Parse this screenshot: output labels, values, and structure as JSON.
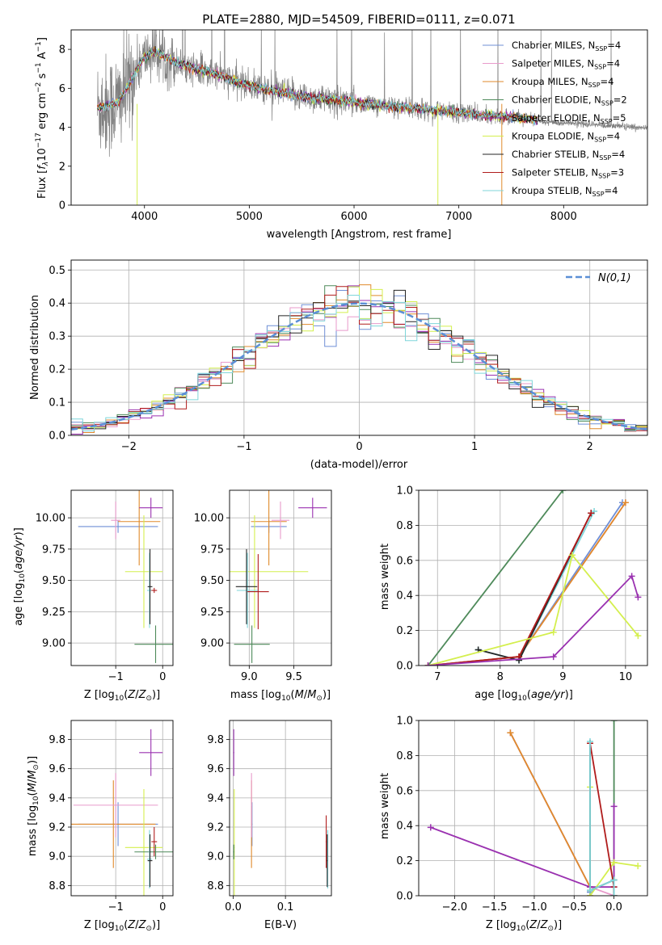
{
  "colors": {
    "Chabrier MILES": "#6f8fd6",
    "Salpeter MILES": "#e89acb",
    "Kroupa MILES": "#e08a2b",
    "Chabrier ELODIE": "#4e8a5a",
    "Salpeter ELODIE": "#9a31b0",
    "Kroupa ELODIE": "#d4ef4e",
    "Chabrier STELIB": "#262626",
    "Salpeter STELIB": "#b01c1c",
    "Kroupa STELIB": "#7fd6da",
    "data": "#808080",
    "normal": "#5b8fd6"
  },
  "chart_data": [
    {
      "id": "spectrum",
      "type": "line",
      "title": "PLATE=2880, MJD=54509, FIBERID=0111, z=0.071",
      "xlabel": "wavelength [Angstrom, rest frame]",
      "ylabel_html": "Flux [f_λ10^-17 erg cm^-2 s^-1 A^-1]",
      "xlim": [
        3300,
        8800
      ],
      "ylim": [
        0,
        9
      ],
      "xticks": [
        "4000",
        "5000",
        "6000",
        "7000",
        "8000"
      ],
      "yticks": [
        "0",
        "2",
        "4",
        "6",
        "8"
      ],
      "legend_position": "top-right",
      "legend": [
        {
          "name": "Chabrier MILES",
          "nssp": "4"
        },
        {
          "name": "Salpeter MILES",
          "nssp": "4"
        },
        {
          "name": "Kroupa MILES",
          "nssp": "4"
        },
        {
          "name": "Chabrier ELODIE",
          "nssp": "2"
        },
        {
          "name": "Salpeter ELODIE",
          "nssp": "5"
        },
        {
          "name": "Kroupa ELODIE",
          "nssp": "4"
        },
        {
          "name": "Chabrier STELIB",
          "nssp": "4"
        },
        {
          "name": "Salpeter STELIB",
          "nssp": "3"
        },
        {
          "name": "Kroupa STELIB",
          "nssp": "4"
        }
      ],
      "model_trend": [
        [
          3550,
          5.0
        ],
        [
          3650,
          5.1
        ],
        [
          3750,
          5.3
        ],
        [
          3850,
          6.2
        ],
        [
          3950,
          7.2
        ],
        [
          4000,
          7.6
        ],
        [
          4100,
          7.9
        ],
        [
          4200,
          7.6
        ],
        [
          4300,
          7.3
        ],
        [
          4500,
          7.0
        ],
        [
          4700,
          6.7
        ],
        [
          4900,
          6.3
        ],
        [
          5100,
          6.0
        ],
        [
          5300,
          5.8
        ],
        [
          5500,
          5.6
        ],
        [
          5700,
          5.45
        ],
        [
          5900,
          5.35
        ],
        [
          6100,
          5.2
        ],
        [
          6300,
          5.1
        ],
        [
          6500,
          5.0
        ],
        [
          6700,
          4.9
        ],
        [
          6900,
          4.8
        ],
        [
          7100,
          4.7
        ],
        [
          7300,
          4.6
        ],
        [
          7500,
          4.5
        ],
        [
          7700,
          4.4
        ]
      ]
    },
    {
      "id": "residuals",
      "type": "line",
      "xlabel": "(data-model)/error",
      "ylabel": "Normed distribution",
      "xlim": [
        -2.5,
        2.5
      ],
      "ylim": [
        0,
        0.53
      ],
      "xticks": [
        "−2",
        "−1",
        "0",
        "1",
        "2"
      ],
      "yticks": [
        "0.0",
        "0.1",
        "0.2",
        "0.3",
        "0.4",
        "0.5"
      ],
      "legend_position": "top-right",
      "normal_label": "N(0,1)",
      "hist_bins": [
        -2.5,
        2.5,
        50
      ]
    },
    {
      "id": "age-vs-Z",
      "type": "scatter",
      "xlabel": "Z [log10(Z/Z⊙)]",
      "ylabel": "age  [log10(age/yr)]",
      "xlim": [
        -1.95,
        0.22
      ],
      "ylim": [
        8.82,
        10.22
      ],
      "xticks": [
        "−1",
        "0"
      ],
      "yticks": [
        "9.00",
        "9.25",
        "9.50",
        "9.75",
        "10.00"
      ],
      "points": [
        {
          "model": "Chabrier MILES",
          "x": -0.95,
          "xerr": 0.85,
          "y": 9.93,
          "yerr": 0.05
        },
        {
          "model": "Kroupa MILES",
          "x": -0.5,
          "xerr": 0.45,
          "y": 9.97,
          "yerr": 0.35
        },
        {
          "model": "Salpeter MILES",
          "x": -1.0,
          "xerr": 0.1,
          "y": 9.98,
          "yerr": 0.15
        },
        {
          "model": "Salpeter ELODIE",
          "x": -0.25,
          "xerr": 0.25,
          "y": 10.08,
          "yerr": 0.08
        },
        {
          "model": "Kroupa ELODIE",
          "x": -0.4,
          "xerr": 0.4,
          "y": 9.57,
          "yerr": 0.45
        },
        {
          "model": "Chabrier ELODIE",
          "x": -0.15,
          "xerr": 0.45,
          "y": 8.99,
          "yerr": 0.15
        },
        {
          "model": "Kroupa STELIB",
          "x": -0.28,
          "xerr": 0.05,
          "y": 9.42,
          "yerr": 0.3
        },
        {
          "model": "Chabrier STELIB",
          "x": -0.27,
          "xerr": 0.05,
          "y": 9.45,
          "yerr": 0.3
        },
        {
          "model": "Salpeter STELIB",
          "x": -0.18,
          "xerr": 0.06,
          "y": 9.42,
          "yerr": 0.02
        }
      ]
    },
    {
      "id": "age-vs-mass",
      "type": "scatter",
      "xlabel": "mass [log10(M/M⊙)]",
      "ylabel": "",
      "xlim": [
        8.78,
        9.92
      ],
      "ylim": [
        8.82,
        10.22
      ],
      "xticks": [
        "9.0",
        "9.5"
      ],
      "yticks": [
        "9.00",
        "9.25",
        "9.50",
        "9.75",
        "10.00"
      ],
      "points": [
        {
          "model": "Chabrier MILES",
          "x": 9.22,
          "xerr": 0.2,
          "y": 9.93,
          "yerr": 0.05
        },
        {
          "model": "Kroupa MILES",
          "x": 9.22,
          "xerr": 0.2,
          "y": 9.97,
          "yerr": 0.35
        },
        {
          "model": "Salpeter MILES",
          "x": 9.35,
          "xerr": 0.1,
          "y": 9.98,
          "yerr": 0.15
        },
        {
          "model": "Salpeter ELODIE",
          "x": 9.71,
          "xerr": 0.16,
          "y": 10.08,
          "yerr": 0.08
        },
        {
          "model": "Kroupa ELODIE",
          "x": 9.06,
          "xerr": 0.6,
          "y": 9.57,
          "yerr": 0.45
        },
        {
          "model": "Chabrier ELODIE",
          "x": 9.03,
          "xerr": 0.2,
          "y": 8.99,
          "yerr": 0.15
        },
        {
          "model": "Kroupa STELIB",
          "x": 8.98,
          "xerr": 0.12,
          "y": 9.42,
          "yerr": 0.3
        },
        {
          "model": "Chabrier STELIB",
          "x": 8.97,
          "xerr": 0.12,
          "y": 9.45,
          "yerr": 0.3
        },
        {
          "model": "Salpeter STELIB",
          "x": 9.1,
          "xerr": 0.12,
          "y": 9.41,
          "yerr": 0.3
        }
      ]
    },
    {
      "id": "weight-vs-age",
      "type": "line",
      "xlabel": "age  [log10(age/yr)]",
      "ylabel": "mass weight",
      "xlim": [
        6.7,
        10.35
      ],
      "ylim": [
        0,
        1
      ],
      "xticks": [
        "7",
        "8",
        "9",
        "10"
      ],
      "yticks": [
        "0.0",
        "0.2",
        "0.4",
        "0.6",
        "0.8",
        "1.0"
      ],
      "series": [
        {
          "model": "Chabrier ELODIE",
          "x": [
            6.85,
            9.0
          ],
          "y": [
            0.0,
            1.0
          ]
        },
        {
          "model": "Chabrier MILES",
          "x": [
            6.85,
            8.3,
            9.95
          ],
          "y": [
            0.0,
            0.05,
            0.93
          ]
        },
        {
          "model": "Salpeter MILES",
          "x": [
            6.85,
            8.3,
            10.0
          ],
          "y": [
            0.0,
            0.05,
            0.93
          ]
        },
        {
          "model": "Kroupa MILES",
          "x": [
            6.85,
            8.3,
            10.0
          ],
          "y": [
            0.0,
            0.05,
            0.93
          ]
        },
        {
          "model": "Kroupa STELIB",
          "x": [
            7.65,
            8.3,
            9.5
          ],
          "y": [
            0.09,
            0.03,
            0.88
          ]
        },
        {
          "model": "Chabrier STELIB",
          "x": [
            7.65,
            8.3,
            9.45
          ],
          "y": [
            0.09,
            0.03,
            0.87
          ]
        },
        {
          "model": "Salpeter STELIB",
          "x": [
            6.85,
            8.3,
            9.45
          ],
          "y": [
            0.0,
            0.05,
            0.87
          ]
        },
        {
          "model": "Kroupa ELODIE",
          "x": [
            6.85,
            8.85,
            9.15,
            10.2
          ],
          "y": [
            0.0,
            0.19,
            0.63,
            0.17
          ]
        },
        {
          "model": "Salpeter ELODIE",
          "x": [
            6.85,
            8.85,
            10.1,
            10.2
          ],
          "y": [
            0.0,
            0.05,
            0.51,
            0.39
          ]
        }
      ]
    },
    {
      "id": "mass-vs-Z",
      "type": "scatter",
      "xlabel": "Z [log10(Z/Z⊙)]",
      "ylabel": "mass [log10(M/M⊙)]",
      "xlim": [
        -1.95,
        0.22
      ],
      "ylim": [
        8.73,
        9.93
      ],
      "xticks": [
        "−1",
        "0"
      ],
      "yticks": [
        "8.8",
        "9.0",
        "9.2",
        "9.4",
        "9.6",
        "9.8"
      ],
      "points": [
        {
          "model": "Chabrier MILES",
          "x": -0.95,
          "xerr": 0.85,
          "y": 9.22,
          "yerr": 0.15
        },
        {
          "model": "Kroupa MILES",
          "x": -1.05,
          "xerr": 0.9,
          "y": 9.22,
          "yerr": 0.3
        },
        {
          "model": "Salpeter MILES",
          "x": -1.0,
          "xerr": 0.9,
          "y": 9.35,
          "yerr": 0.22
        },
        {
          "model": "Salpeter ELODIE",
          "x": -0.25,
          "xerr": 0.25,
          "y": 9.71,
          "yerr": 0.16
        },
        {
          "model": "Kroupa ELODIE",
          "x": -0.4,
          "xerr": 0.4,
          "y": 9.06,
          "yerr": 0.4
        },
        {
          "model": "Chabrier ELODIE",
          "x": -0.15,
          "xerr": 0.45,
          "y": 9.03,
          "yerr": 0.05
        },
        {
          "model": "Kroupa STELIB",
          "x": -0.28,
          "xerr": 0.05,
          "y": 8.98,
          "yerr": 0.2
        },
        {
          "model": "Chabrier STELIB",
          "x": -0.27,
          "xerr": 0.05,
          "y": 8.97,
          "yerr": 0.18
        },
        {
          "model": "Salpeter STELIB",
          "x": -0.18,
          "xerr": 0.06,
          "y": 9.1,
          "yerr": 0.1
        }
      ]
    },
    {
      "id": "mass-vs-EBV",
      "type": "scatter",
      "xlabel": "E(B-V)",
      "ylabel": "",
      "xlim": [
        -0.007,
        0.188
      ],
      "ylim": [
        8.73,
        9.93
      ],
      "xticks": [
        "0.0",
        "0.1"
      ],
      "yticks": [
        "8.8",
        "9.0",
        "9.2",
        "9.4",
        "9.6",
        "9.8"
      ],
      "points": [
        {
          "model": "Salpeter ELODIE",
          "x": 0.001,
          "xerr": 0.001,
          "y": 9.71,
          "yerr": 0.16
        },
        {
          "model": "Kroupa ELODIE",
          "x": 0.002,
          "xerr": 0.001,
          "y": 9.06,
          "yerr": 0.4
        },
        {
          "model": "Chabrier ELODIE",
          "x": 0.001,
          "xerr": 0.001,
          "y": 9.03,
          "yerr": 0.05
        },
        {
          "model": "Chabrier MILES",
          "x": 0.036,
          "xerr": 0.001,
          "y": 9.22,
          "yerr": 0.15
        },
        {
          "model": "Kroupa MILES",
          "x": 0.035,
          "xerr": 0.001,
          "y": 9.22,
          "yerr": 0.3
        },
        {
          "model": "Salpeter MILES",
          "x": 0.035,
          "xerr": 0.001,
          "y": 9.35,
          "yerr": 0.22
        },
        {
          "model": "Kroupa STELIB",
          "x": 0.181,
          "xerr": 0.001,
          "y": 8.98,
          "yerr": 0.2
        },
        {
          "model": "Chabrier STELIB",
          "x": 0.18,
          "xerr": 0.001,
          "y": 8.97,
          "yerr": 0.18
        },
        {
          "model": "Salpeter STELIB",
          "x": 0.178,
          "xerr": 0.001,
          "y": 9.1,
          "yerr": 0.18
        }
      ]
    },
    {
      "id": "weight-vs-Z",
      "type": "line",
      "xlabel": "Z [log10(Z/Z⊙)]",
      "ylabel": "mass weight",
      "xlim": [
        -2.45,
        0.42
      ],
      "ylim": [
        0,
        1
      ],
      "xticks": [
        "−2.0",
        "−1.5",
        "−1.0",
        "−0.5",
        "0.0"
      ],
      "yticks": [
        "0.0",
        "0.2",
        "0.4",
        "0.6",
        "0.8",
        "1.0"
      ],
      "series": [
        {
          "model": "Chabrier MILES",
          "x": [
            -1.3,
            -0.3,
            -0.3
          ],
          "y": [
            0.93,
            0.05,
            0.02
          ]
        },
        {
          "model": "Salpeter MILES",
          "x": [
            -1.3,
            -0.3,
            0.0
          ],
          "y": [
            0.93,
            0.05,
            0.0
          ]
        },
        {
          "model": "Kroupa MILES",
          "x": [
            -1.3,
            -0.3,
            -0.3
          ],
          "y": [
            0.93,
            0.05,
            0.0
          ]
        },
        {
          "model": "Chabrier ELODIE",
          "x": [
            0.0,
            0.0
          ],
          "y": [
            0.0,
            1.0
          ]
        },
        {
          "model": "Salpeter ELODIE",
          "x": [
            -2.3,
            -0.3,
            0.0,
            0.0
          ],
          "y": [
            0.39,
            0.05,
            0.05,
            0.51
          ]
        },
        {
          "model": "Kroupa ELODIE",
          "x": [
            -0.3,
            -0.3,
            0.0,
            0.3
          ],
          "y": [
            0.62,
            0.0,
            0.19,
            0.17
          ]
        },
        {
          "model": "Chabrier STELIB",
          "x": [
            -0.3,
            -0.3,
            0.0,
            0.0
          ],
          "y": [
            0.87,
            0.03,
            0.09,
            0.0
          ]
        },
        {
          "model": "Salpeter STELIB",
          "x": [
            -0.3,
            0.0,
            0.0
          ],
          "y": [
            0.87,
            0.05,
            0.0
          ]
        },
        {
          "model": "Kroupa STELIB",
          "x": [
            -0.3,
            -0.3,
            0.0,
            0.0
          ],
          "y": [
            0.88,
            0.03,
            0.09,
            0.0
          ]
        }
      ]
    }
  ]
}
